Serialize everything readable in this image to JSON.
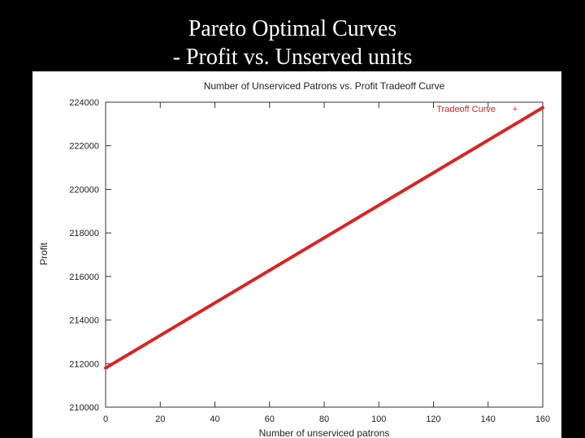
{
  "slide": {
    "title_line1": "Pareto Optimal Curves",
    "title_line2": "- Profit vs. Unserved units"
  },
  "chart_data": {
    "type": "line",
    "title": "Number of Unserviced Patrons vs. Profit Tradeoff Curve",
    "xlabel": "Number of unserviced patrons",
    "ylabel": "Profit",
    "xlim": [
      0,
      160
    ],
    "ylim": [
      210000,
      224000
    ],
    "x_ticks": [
      0,
      20,
      40,
      60,
      80,
      100,
      120,
      140,
      160
    ],
    "y_ticks": [
      210000,
      212000,
      214000,
      216000,
      218000,
      220000,
      222000,
      224000
    ],
    "grid": false,
    "legend_position": "top-right",
    "series": [
      {
        "name": "Tradeoff Curve",
        "legend_marker": "+",
        "color": "#dd2222",
        "x": [
          0,
          160
        ],
        "y": [
          211800,
          223750
        ]
      }
    ]
  }
}
